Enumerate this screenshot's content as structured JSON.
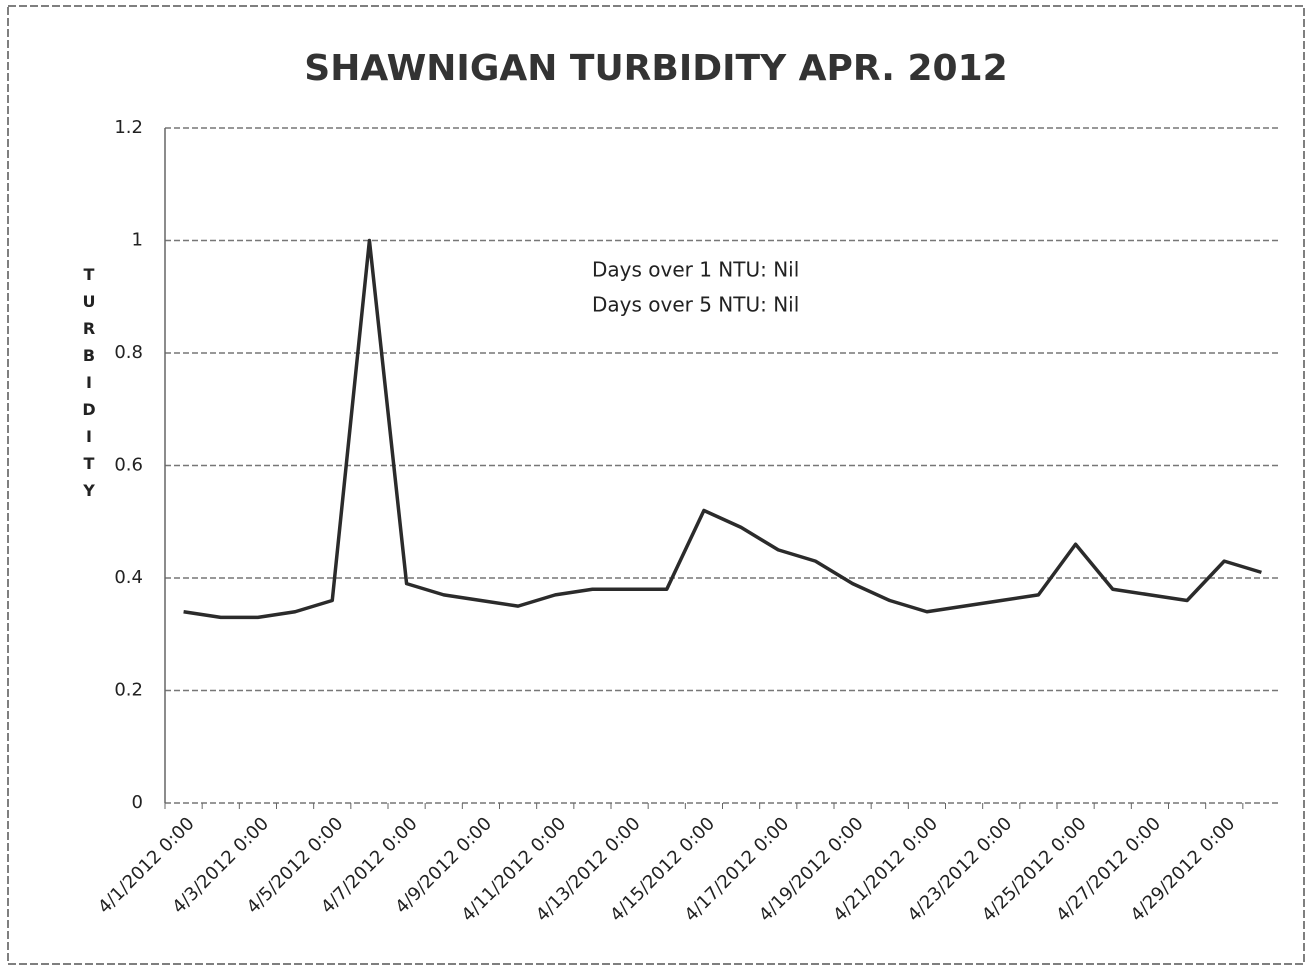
{
  "chart_data": {
    "type": "line",
    "title": "SHAWNIGAN TURBIDITY APR. 2012",
    "y_label": "TURBIDITY",
    "annotations": [
      "Days over 1 NTU: Nil",
      "Days over 5 NTU: Nil"
    ],
    "categories": [
      "4/1/2012 0:00",
      null,
      "4/3/2012 0:00",
      null,
      "4/5/2012 0:00",
      null,
      "4/7/2012 0:00",
      null,
      "4/9/2012 0:00",
      null,
      "4/11/2012 0:00",
      null,
      "4/13/2012 0:00",
      null,
      "4/15/2012 0:00",
      null,
      "4/17/2012 0:00",
      null,
      "4/19/2012 0:00",
      null,
      "4/21/2012 0:00",
      null,
      "4/23/2012 0:00",
      null,
      "4/25/2012 0:00",
      null,
      "4/27/2012 0:00",
      null,
      "4/29/2012 0:00",
      null
    ],
    "series": [
      {
        "name": "Turbidity",
        "color": "#2b2b2b",
        "values": [
          0.34,
          0.33,
          0.33,
          0.34,
          0.36,
          1.0,
          0.39,
          0.37,
          0.36,
          0.35,
          0.37,
          0.38,
          0.38,
          0.38,
          0.52,
          0.49,
          0.45,
          0.43,
          0.39,
          0.36,
          0.34,
          0.35,
          0.36,
          0.37,
          0.46,
          0.38,
          0.37,
          0.36,
          0.43,
          0.41
        ]
      }
    ],
    "ylim": [
      0,
      1.2
    ],
    "yticks": [
      0,
      0.2,
      0.4,
      0.6,
      0.8,
      1,
      1.2
    ],
    "grid": true
  }
}
